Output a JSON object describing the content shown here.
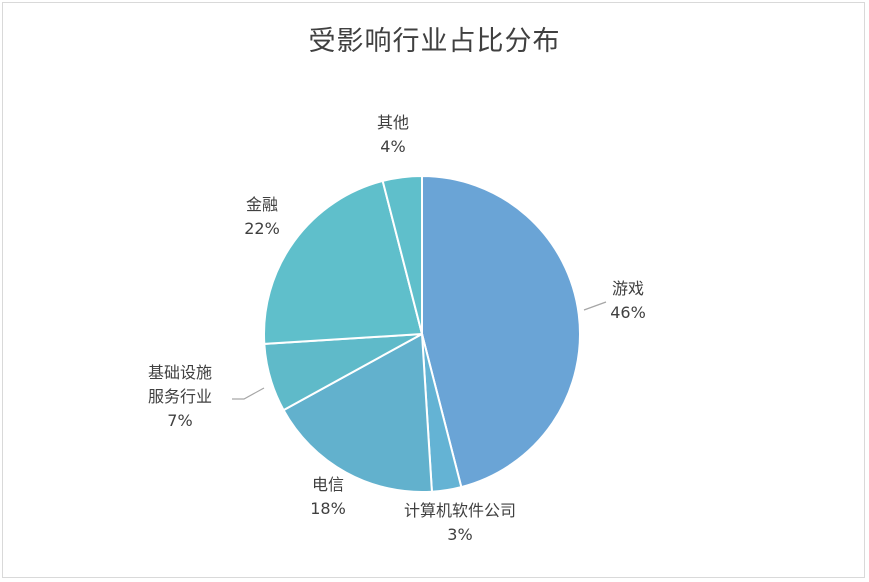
{
  "chart_data": {
    "type": "pie",
    "title": "受影响行业占比分布",
    "categories": [
      "游戏",
      "计算机软件公司",
      "电信",
      "基础设施服务行业",
      "金融",
      "其他"
    ],
    "values": [
      46,
      3,
      18,
      7,
      22,
      4
    ],
    "data_labels": [
      "46%",
      "3%",
      "18%",
      "7%",
      "22%",
      "4%"
    ],
    "category_label_lines": [
      [
        "游戏"
      ],
      [
        "计算机软件公司"
      ],
      [
        "电信"
      ],
      [
        "基础设施",
        "服务行业"
      ],
      [
        "金融"
      ],
      [
        "其他"
      ]
    ],
    "colors": [
      "#6aa4d6",
      "#64b3d4",
      "#62b1cd",
      "#5fbac9",
      "#5fbfcb",
      "#5fbfcb"
    ],
    "legend": "none",
    "grid": false
  }
}
